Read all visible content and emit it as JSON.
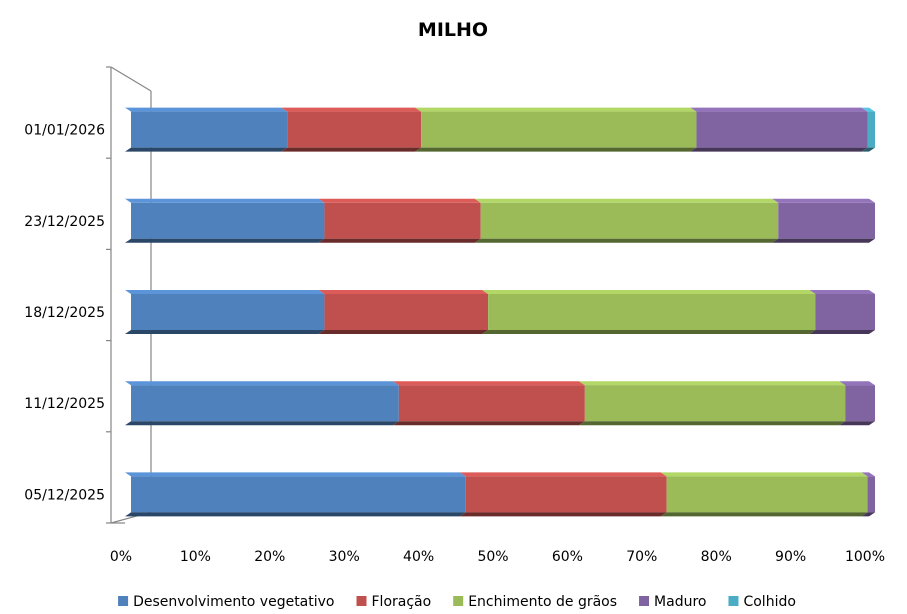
{
  "chart_data": {
    "type": "bar",
    "orientation": "horizontal",
    "stacked": true,
    "percent_stacked": true,
    "title": "MILHO",
    "xlabel": "",
    "ylabel": "",
    "categories": [
      "05/12/2025",
      "11/12/2025",
      "18/12/2025",
      "23/12/2025",
      "01/01/2026"
    ],
    "series": [
      {
        "name": "Desenvolvimento vegetativo",
        "color": "#4F81BD",
        "values": [
          45,
          36,
          26,
          26,
          21
        ]
      },
      {
        "name": "Floração",
        "color": "#C0504D",
        "values": [
          27,
          25,
          22,
          21,
          18
        ]
      },
      {
        "name": "Enchimento de grãos",
        "color": "#9BBB59",
        "values": [
          27,
          35,
          44,
          40,
          37
        ]
      },
      {
        "name": "Maduro",
        "color": "#8064A2",
        "values": [
          1,
          4,
          8,
          13,
          23
        ]
      },
      {
        "name": "Colhido",
        "color": "#4BACC6",
        "values": [
          0,
          0,
          0,
          0,
          1
        ]
      }
    ],
    "xlim": [
      0,
      100
    ],
    "x_ticks": [
      "0%",
      "10%",
      "20%",
      "30%",
      "40%",
      "50%",
      "60%",
      "70%",
      "80%",
      "90%",
      "100%"
    ],
    "grid": false,
    "legend_position": "bottom",
    "style": "3d"
  }
}
